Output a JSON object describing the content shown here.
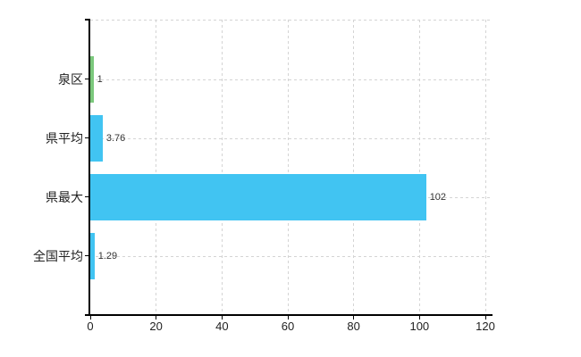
{
  "chart_data": {
    "type": "bar",
    "orientation": "horizontal",
    "title": "",
    "xlabel": "",
    "ylabel": "",
    "categories": [
      "泉区",
      "県平均",
      "県最大",
      "全国平均"
    ],
    "values": [
      1,
      3.76,
      102,
      1.29
    ],
    "value_labels": [
      "1",
      "3.76",
      "102",
      "1.29"
    ],
    "bar_colors": [
      "#7BC87C",
      "#41C4F2",
      "#41C4F2",
      "#41C4F2"
    ],
    "x_ticks": [
      "0",
      "20",
      "40",
      "60",
      "80",
      "100",
      "120"
    ],
    "x_tick_values": [
      0,
      20,
      40,
      60,
      80,
      100,
      120
    ],
    "xlim": [
      0,
      120
    ],
    "grid": "dashed",
    "legend": "none",
    "colors": {
      "background": "#ffffff",
      "grid": "#d4d4d4",
      "axis": "#000000",
      "value_label": "#333333",
      "tick_label": "#222222",
      "bar_default": "#41C4F2",
      "bar_highlight": "#7BC87C"
    }
  }
}
